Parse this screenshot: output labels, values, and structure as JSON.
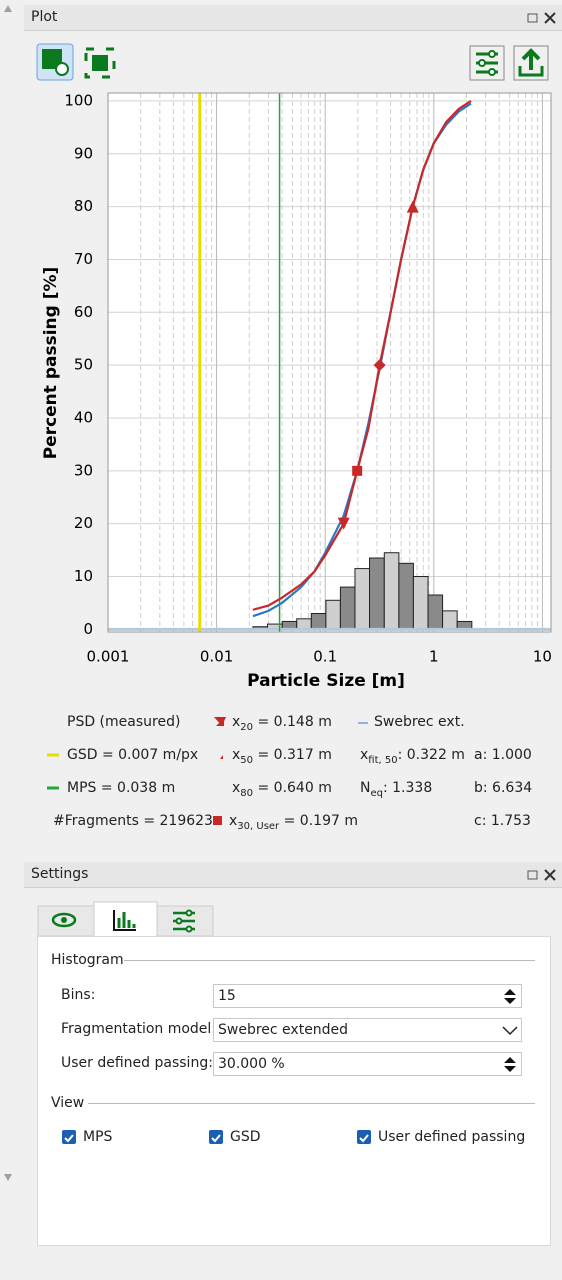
{
  "plot_panel": {
    "title": "Plot"
  },
  "chart_data": {
    "type": "combo",
    "x_label": "Particle Size [m]",
    "y_label": "Percent passing [%]",
    "log_x": true,
    "xlim": [
      0.001,
      12
    ],
    "xticks": [
      0.001,
      0.01,
      0.1,
      1,
      10
    ],
    "ylim": [
      -0.5,
      101.5
    ],
    "yticks": [
      0,
      10,
      20,
      30,
      40,
      50,
      60,
      70,
      80,
      90,
      100
    ],
    "grid": true,
    "histogram": {
      "bins": [
        0.0216,
        0.0294,
        0.0402,
        0.0547,
        0.0745,
        0.1015,
        0.138,
        0.188,
        0.256,
        0.35,
        0.477,
        0.649,
        0.885,
        1.205,
        1.641,
        2.24
      ],
      "counts": [
        0.5,
        1,
        1.5,
        2,
        3,
        5.5,
        8,
        11.5,
        13.5,
        14.5,
        12.5,
        10,
        6.5,
        3.5,
        1.5
      ],
      "colors": [
        "#8a8a8a",
        "#cfcfcf"
      ]
    },
    "series": [
      {
        "name": "Swebrec ext.",
        "color": "#2a78c8",
        "x": [
          0.0216,
          0.03,
          0.04,
          0.06,
          0.08,
          0.1,
          0.148,
          0.197,
          0.25,
          0.322,
          0.4,
          0.5,
          0.64,
          0.8,
          1.0,
          1.3,
          1.7,
          2.2
        ],
        "values": [
          2.5,
          3.5,
          5,
          8,
          11,
          14.5,
          21.5,
          30,
          39,
          50,
          60,
          70,
          80,
          87,
          92,
          95.5,
          98,
          99.5
        ]
      },
      {
        "name": "PSD (measured)",
        "color": "#c82828",
        "x": [
          0.0216,
          0.03,
          0.04,
          0.06,
          0.08,
          0.1,
          0.148,
          0.197,
          0.25,
          0.317,
          0.4,
          0.5,
          0.64,
          0.8,
          1.0,
          1.3,
          1.7,
          2.2
        ],
        "values": [
          3.7,
          4.5,
          6,
          8.5,
          11,
          14,
          20,
          30,
          38,
          50,
          60,
          70,
          80,
          87,
          92,
          96,
          98.5,
          100
        ]
      }
    ],
    "markers": {
      "color": "#c82828",
      "x": [
        0.148,
        0.197,
        0.317,
        0.64
      ],
      "values": [
        20,
        30,
        50,
        80
      ],
      "symbols": [
        "triangle-down",
        "square",
        "diamond",
        "triangle-up"
      ]
    },
    "vlines": [
      {
        "x": 0.007,
        "color": "#e6dc00"
      },
      {
        "x": 0.038,
        "color": "#22a83a"
      }
    ]
  },
  "stats": {
    "gsd": "GSD = 0.007 m/px",
    "mps": "MPS = 0.038 m",
    "fragments": "#Fragments = 219623",
    "x20": {
      "symbol": "x",
      "sub": "20",
      "text": " = 0.148 m"
    },
    "x50": {
      "symbol": "x",
      "sub": "50",
      "text": " = 0.317 m"
    },
    "x80": {
      "symbol": "x",
      "sub": "80",
      "text": " = 0.640 m"
    },
    "x30": {
      "symbol": "x",
      "sub": "30, User",
      "text": " = 0.197 m"
    },
    "xfit": {
      "symbol": "x",
      "sub": "fit, 50",
      "text": ": 0.322 m"
    },
    "neq": {
      "symbol": "N",
      "sub": "eq",
      "text": ": 1.338"
    },
    "a": "a: 1.000",
    "b": "b: 6.634",
    "c": "c: 1.753"
  },
  "settings_panel": {
    "title": "Settings",
    "histogram_group": {
      "title": "Histogram",
      "fields": [
        {
          "label": "Bins:",
          "value": "15",
          "control": "spin"
        },
        {
          "label": "Fragmentation model:",
          "value": "Swebrec extended",
          "control": "dropdown"
        },
        {
          "label": "User defined passing:",
          "value": "30.000 %",
          "control": "spin"
        }
      ]
    },
    "view_group": {
      "title": "View",
      "checkboxes": [
        {
          "label": "MPS",
          "checked": true
        },
        {
          "label": "GSD",
          "checked": true
        },
        {
          "label": "User defined passing",
          "checked": true
        }
      ]
    }
  }
}
